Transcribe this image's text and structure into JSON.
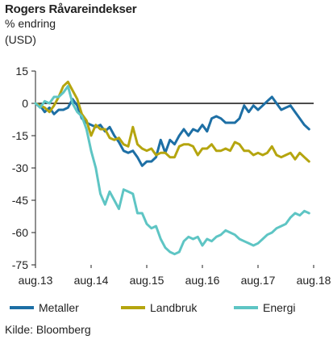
{
  "header": {
    "title": "Rogers Råvareindekser",
    "subtitle_line1": "% endring",
    "subtitle_line2": "(USD)"
  },
  "footer": {
    "source": "Kilde: Bloomberg"
  },
  "chart_data": {
    "type": "line",
    "title": "Rogers Råvareindekser",
    "ylabel": "% endring (USD)",
    "xlabel": "",
    "ylim": [
      -75,
      15
    ],
    "yticks": [
      15,
      0,
      -15,
      -30,
      -45,
      -60,
      -75
    ],
    "xticks": [
      "aug.13",
      "aug.14",
      "aug.15",
      "aug.16",
      "aug.17",
      "aug.18"
    ],
    "xlim": [
      0,
      60
    ],
    "grid": false,
    "zero_line": true,
    "legend_position": "bottom",
    "series": [
      {
        "name": "Metaller",
        "color": "#1d6fa5",
        "points": [
          [
            0,
            0
          ],
          [
            1,
            -1
          ],
          [
            2,
            -4
          ],
          [
            3,
            -2
          ],
          [
            4,
            -5
          ],
          [
            5,
            -3
          ],
          [
            6,
            -3
          ],
          [
            7,
            -2
          ],
          [
            8,
            2
          ],
          [
            9,
            -1
          ],
          [
            10,
            -7
          ],
          [
            11,
            -9
          ],
          [
            12,
            -10
          ],
          [
            13,
            -11
          ],
          [
            14,
            -10
          ],
          [
            15,
            -13
          ],
          [
            16,
            -11
          ],
          [
            17,
            -15
          ],
          [
            18,
            -18
          ],
          [
            19,
            -22
          ],
          [
            20,
            -23
          ],
          [
            21,
            -22
          ],
          [
            22,
            -25
          ],
          [
            23,
            -29
          ],
          [
            24,
            -27
          ],
          [
            25,
            -27
          ],
          [
            26,
            -25
          ],
          [
            27,
            -17
          ],
          [
            28,
            -23
          ],
          [
            29,
            -17
          ],
          [
            30,
            -19
          ],
          [
            31,
            -15
          ],
          [
            32,
            -12
          ],
          [
            33,
            -15
          ],
          [
            34,
            -12
          ],
          [
            35,
            -13
          ],
          [
            36,
            -10
          ],
          [
            37,
            -13
          ],
          [
            38,
            -7
          ],
          [
            39,
            -6
          ],
          [
            40,
            -7
          ],
          [
            41,
            -9
          ],
          [
            42,
            -9
          ],
          [
            43,
            -9
          ],
          [
            44,
            -7
          ],
          [
            45,
            -1
          ],
          [
            46,
            -4
          ],
          [
            47,
            -1
          ],
          [
            48,
            -3
          ],
          [
            49,
            -1
          ],
          [
            50,
            1
          ],
          [
            51,
            3
          ],
          [
            52,
            0
          ],
          [
            53,
            -3
          ],
          [
            54,
            -2
          ],
          [
            55,
            -1
          ],
          [
            56,
            -4
          ],
          [
            57,
            -7
          ],
          [
            58,
            -10
          ],
          [
            59,
            -12
          ]
        ]
      },
      {
        "name": "Landbruk",
        "color": "#b5a50f",
        "points": [
          [
            0,
            0
          ],
          [
            1,
            -1
          ],
          [
            2,
            -2
          ],
          [
            3,
            -4
          ],
          [
            4,
            -1
          ],
          [
            5,
            3
          ],
          [
            6,
            8
          ],
          [
            7,
            10
          ],
          [
            8,
            6
          ],
          [
            9,
            2
          ],
          [
            10,
            -5
          ],
          [
            11,
            -8
          ],
          [
            12,
            -15
          ],
          [
            13,
            -10
          ],
          [
            14,
            -12
          ],
          [
            15,
            -12
          ],
          [
            16,
            -16
          ],
          [
            17,
            -17
          ],
          [
            18,
            -16
          ],
          [
            19,
            -19
          ],
          [
            20,
            -20
          ],
          [
            21,
            -11
          ],
          [
            22,
            -19
          ],
          [
            23,
            -21
          ],
          [
            24,
            -22
          ],
          [
            25,
            -21
          ],
          [
            26,
            -24
          ],
          [
            27,
            -23
          ],
          [
            28,
            -23
          ],
          [
            29,
            -25
          ],
          [
            30,
            -25
          ],
          [
            31,
            -20
          ],
          [
            32,
            -19
          ],
          [
            33,
            -19
          ],
          [
            34,
            -20
          ],
          [
            35,
            -24
          ],
          [
            36,
            -21
          ],
          [
            37,
            -21
          ],
          [
            38,
            -19
          ],
          [
            39,
            -22
          ],
          [
            40,
            -22
          ],
          [
            41,
            -21
          ],
          [
            42,
            -22
          ],
          [
            43,
            -18
          ],
          [
            44,
            -19
          ],
          [
            45,
            -22
          ],
          [
            46,
            -22
          ],
          [
            47,
            -24
          ],
          [
            48,
            -23
          ],
          [
            49,
            -24
          ],
          [
            50,
            -23
          ],
          [
            51,
            -20
          ],
          [
            52,
            -24
          ],
          [
            53,
            -25
          ],
          [
            54,
            -24
          ],
          [
            55,
            -23
          ],
          [
            56,
            -26
          ],
          [
            57,
            -23
          ],
          [
            58,
            -25
          ],
          [
            59,
            -27
          ]
        ]
      },
      {
        "name": "Energi",
        "color": "#5ec5c4",
        "points": [
          [
            0,
            0
          ],
          [
            1,
            -2
          ],
          [
            2,
            1
          ],
          [
            3,
            0
          ],
          [
            4,
            3
          ],
          [
            5,
            3
          ],
          [
            6,
            5
          ],
          [
            7,
            8
          ],
          [
            8,
            0
          ],
          [
            9,
            -4
          ],
          [
            10,
            -6
          ],
          [
            11,
            -12
          ],
          [
            12,
            -22
          ],
          [
            13,
            -30
          ],
          [
            14,
            -42
          ],
          [
            15,
            -47
          ],
          [
            16,
            -41
          ],
          [
            17,
            -45
          ],
          [
            18,
            -49
          ],
          [
            19,
            -40
          ],
          [
            20,
            -41
          ],
          [
            21,
            -42
          ],
          [
            22,
            -51
          ],
          [
            23,
            -51
          ],
          [
            24,
            -56
          ],
          [
            25,
            -58
          ],
          [
            26,
            -57
          ],
          [
            27,
            -63
          ],
          [
            28,
            -67
          ],
          [
            29,
            -69
          ],
          [
            30,
            -70
          ],
          [
            31,
            -69
          ],
          [
            32,
            -64
          ],
          [
            33,
            -62
          ],
          [
            34,
            -63
          ],
          [
            35,
            -62
          ],
          [
            36,
            -66
          ],
          [
            37,
            -63
          ],
          [
            38,
            -64
          ],
          [
            39,
            -62
          ],
          [
            40,
            -61
          ],
          [
            41,
            -59
          ],
          [
            42,
            -60
          ],
          [
            43,
            -61
          ],
          [
            44,
            -63
          ],
          [
            45,
            -64
          ],
          [
            46,
            -65
          ],
          [
            47,
            -66
          ],
          [
            48,
            -65
          ],
          [
            49,
            -63
          ],
          [
            50,
            -61
          ],
          [
            51,
            -60
          ],
          [
            52,
            -58
          ],
          [
            53,
            -57
          ],
          [
            54,
            -56
          ],
          [
            55,
            -53
          ],
          [
            56,
            -51
          ],
          [
            57,
            -52
          ],
          [
            58,
            -50
          ],
          [
            59,
            -51
          ]
        ]
      }
    ]
  }
}
